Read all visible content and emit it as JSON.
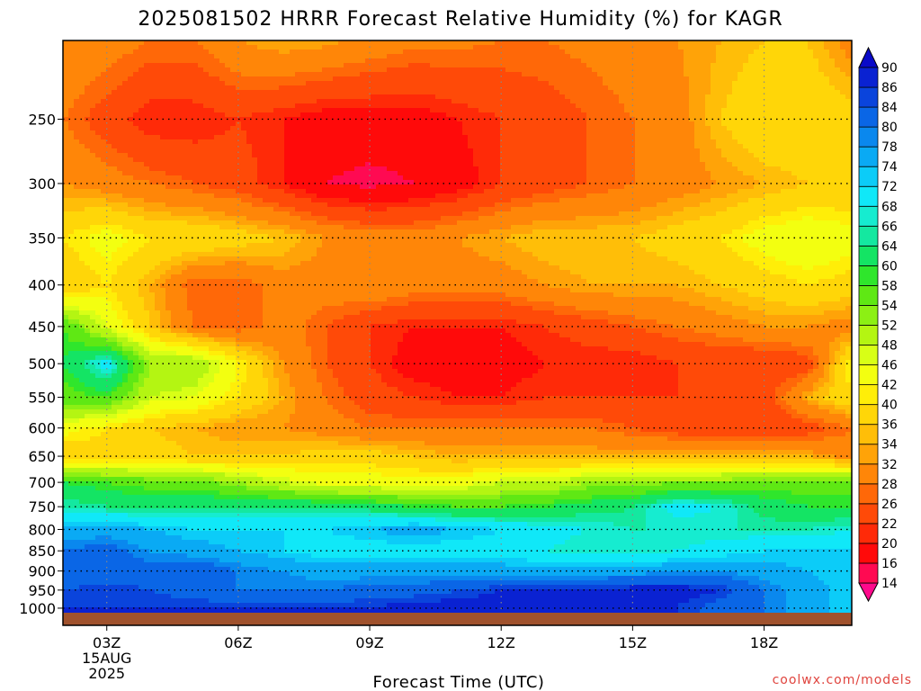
{
  "chart_data": {
    "type": "heatmap",
    "title": "2025081502 HRRR Forecast Relative Humidity (%) for KAGR",
    "xlabel": "Forecast Time (UTC)",
    "ylabel": "",
    "credit": "coolwx.com/models",
    "x_ticks": [
      {
        "label": "03Z",
        "hour": 3
      },
      {
        "label": "06Z",
        "hour": 6
      },
      {
        "label": "09Z",
        "hour": 9
      },
      {
        "label": "12Z",
        "hour": 12
      },
      {
        "label": "15Z",
        "hour": 15
      },
      {
        "label": "18Z",
        "hour": 18
      }
    ],
    "x_date_lines": [
      "15AUG",
      "2025"
    ],
    "xlim": [
      2,
      20
    ],
    "y_ticks": [
      250,
      300,
      350,
      400,
      450,
      500,
      550,
      600,
      650,
      700,
      750,
      800,
      850,
      900,
      950,
      1000
    ],
    "ylim": [
      200,
      1013
    ],
    "y_scale": "log (pressure, hPa)",
    "grid": true,
    "colorbar": {
      "levels": [
        14,
        16,
        20,
        22,
        26,
        28,
        32,
        34,
        36,
        40,
        42,
        46,
        48,
        52,
        54,
        58,
        60,
        64,
        66,
        68,
        72,
        74,
        78,
        80,
        84,
        86,
        90
      ],
      "colors": [
        "#ff0a8c",
        "#ff0a52",
        "#ff0a0a",
        "#ff2a08",
        "#ff4a08",
        "#ff6808",
        "#ff8608",
        "#ffa308",
        "#ffbe08",
        "#ffd608",
        "#ffee08",
        "#f3ff10",
        "#d8ff16",
        "#b4f512",
        "#8cf014",
        "#5fe814",
        "#2fe62c",
        "#14e464",
        "#14e8a0",
        "#16ecd0",
        "#10e8f8",
        "#0cccf8",
        "#0aaaf4",
        "#0a88ee",
        "#0a66e6",
        "#0a44dc",
        "#0a22d2",
        "#0a0ac8"
      ],
      "position": "right",
      "extend": "both"
    },
    "hours": [
      2,
      3,
      4,
      5,
      6,
      7,
      8,
      9,
      10,
      11,
      12,
      13,
      14,
      15,
      16,
      17,
      18,
      19,
      20
    ],
    "pressure_levels": [
      200,
      250,
      300,
      350,
      400,
      450,
      500,
      550,
      600,
      650,
      700,
      750,
      800,
      850,
      900,
      950,
      1000
    ],
    "values": [
      [
        32,
        30,
        28,
        28,
        32,
        34,
        33,
        31,
        29,
        29,
        28,
        28,
        29,
        30,
        32,
        34,
        36,
        36,
        30
      ],
      [
        28,
        24,
        20,
        20,
        22,
        20,
        18,
        18,
        18,
        20,
        22,
        24,
        26,
        28,
        30,
        36,
        40,
        40,
        38
      ],
      [
        32,
        30,
        28,
        26,
        24,
        20,
        16,
        15,
        16,
        18,
        22,
        24,
        26,
        28,
        30,
        32,
        34,
        36,
        36
      ],
      [
        40,
        44,
        40,
        40,
        38,
        36,
        32,
        30,
        30,
        32,
        34,
        36,
        36,
        36,
        38,
        40,
        44,
        46,
        44
      ],
      [
        36,
        40,
        34,
        26,
        26,
        30,
        30,
        32,
        30,
        30,
        30,
        32,
        34,
        34,
        34,
        36,
        38,
        40,
        38
      ],
      [
        58,
        46,
        36,
        28,
        26,
        30,
        26,
        22,
        20,
        20,
        20,
        22,
        24,
        26,
        28,
        30,
        32,
        32,
        30
      ],
      [
        60,
        70,
        52,
        52,
        42,
        32,
        26,
        22,
        18,
        18,
        18,
        20,
        20,
        20,
        22,
        22,
        22,
        24,
        42
      ],
      [
        56,
        58,
        48,
        46,
        40,
        34,
        28,
        24,
        22,
        20,
        20,
        22,
        22,
        22,
        22,
        22,
        24,
        34,
        40
      ],
      [
        44,
        40,
        36,
        34,
        32,
        32,
        30,
        28,
        28,
        28,
        28,
        28,
        28,
        26,
        24,
        22,
        22,
        24,
        28
      ],
      [
        36,
        38,
        38,
        36,
        36,
        36,
        38,
        38,
        36,
        34,
        34,
        34,
        34,
        34,
        34,
        34,
        34,
        34,
        30
      ],
      [
        60,
        58,
        56,
        56,
        52,
        48,
        44,
        44,
        44,
        44,
        48,
        48,
        52,
        52,
        54,
        54,
        56,
        56,
        56
      ],
      [
        66,
        64,
        64,
        64,
        64,
        64,
        64,
        62,
        60,
        58,
        58,
        60,
        62,
        64,
        70,
        68,
        62,
        60,
        60
      ],
      [
        76,
        76,
        74,
        72,
        72,
        72,
        72,
        74,
        76,
        74,
        72,
        70,
        68,
        66,
        66,
        66,
        66,
        66,
        68
      ],
      [
        80,
        82,
        78,
        76,
        74,
        72,
        70,
        70,
        70,
        70,
        70,
        68,
        66,
        66,
        68,
        70,
        72,
        72,
        72
      ],
      [
        80,
        80,
        82,
        84,
        80,
        78,
        76,
        76,
        76,
        76,
        76,
        76,
        76,
        76,
        78,
        78,
        76,
        74,
        72
      ],
      [
        84,
        86,
        84,
        82,
        80,
        80,
        80,
        82,
        82,
        84,
        86,
        86,
        86,
        88,
        88,
        86,
        80,
        76,
        72
      ],
      [
        86,
        86,
        86,
        86,
        86,
        86,
        86,
        86,
        88,
        88,
        88,
        88,
        86,
        86,
        86,
        82,
        80,
        76,
        72
      ]
    ],
    "surface_color": "#a0522d"
  }
}
